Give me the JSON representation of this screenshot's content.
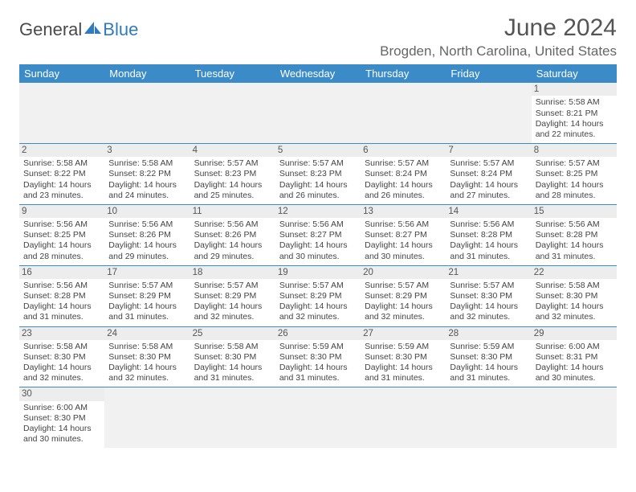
{
  "branding": {
    "logo_text_1": "General",
    "logo_text_2": "Blue"
  },
  "header": {
    "month_title": "June 2024",
    "location": "Brogden, North Carolina, United States"
  },
  "colors": {
    "header_bg": "#3b8bc9",
    "header_text": "#ffffff",
    "daynum_bg": "#ededed",
    "empty_bg": "#f1f1f1",
    "border": "#3b8bc9"
  },
  "weekdays": [
    "Sunday",
    "Monday",
    "Tuesday",
    "Wednesday",
    "Thursday",
    "Friday",
    "Saturday"
  ],
  "weeks": [
    [
      null,
      null,
      null,
      null,
      null,
      null,
      {
        "n": "1",
        "sr": "5:58 AM",
        "ss": "8:21 PM",
        "dl": "14 hours and 22 minutes."
      }
    ],
    [
      {
        "n": "2",
        "sr": "5:58 AM",
        "ss": "8:22 PM",
        "dl": "14 hours and 23 minutes."
      },
      {
        "n": "3",
        "sr": "5:58 AM",
        "ss": "8:22 PM",
        "dl": "14 hours and 24 minutes."
      },
      {
        "n": "4",
        "sr": "5:57 AM",
        "ss": "8:23 PM",
        "dl": "14 hours and 25 minutes."
      },
      {
        "n": "5",
        "sr": "5:57 AM",
        "ss": "8:23 PM",
        "dl": "14 hours and 26 minutes."
      },
      {
        "n": "6",
        "sr": "5:57 AM",
        "ss": "8:24 PM",
        "dl": "14 hours and 26 minutes."
      },
      {
        "n": "7",
        "sr": "5:57 AM",
        "ss": "8:24 PM",
        "dl": "14 hours and 27 minutes."
      },
      {
        "n": "8",
        "sr": "5:57 AM",
        "ss": "8:25 PM",
        "dl": "14 hours and 28 minutes."
      }
    ],
    [
      {
        "n": "9",
        "sr": "5:56 AM",
        "ss": "8:25 PM",
        "dl": "14 hours and 28 minutes."
      },
      {
        "n": "10",
        "sr": "5:56 AM",
        "ss": "8:26 PM",
        "dl": "14 hours and 29 minutes."
      },
      {
        "n": "11",
        "sr": "5:56 AM",
        "ss": "8:26 PM",
        "dl": "14 hours and 29 minutes."
      },
      {
        "n": "12",
        "sr": "5:56 AM",
        "ss": "8:27 PM",
        "dl": "14 hours and 30 minutes."
      },
      {
        "n": "13",
        "sr": "5:56 AM",
        "ss": "8:27 PM",
        "dl": "14 hours and 30 minutes."
      },
      {
        "n": "14",
        "sr": "5:56 AM",
        "ss": "8:28 PM",
        "dl": "14 hours and 31 minutes."
      },
      {
        "n": "15",
        "sr": "5:56 AM",
        "ss": "8:28 PM",
        "dl": "14 hours and 31 minutes."
      }
    ],
    [
      {
        "n": "16",
        "sr": "5:56 AM",
        "ss": "8:28 PM",
        "dl": "14 hours and 31 minutes."
      },
      {
        "n": "17",
        "sr": "5:57 AM",
        "ss": "8:29 PM",
        "dl": "14 hours and 31 minutes."
      },
      {
        "n": "18",
        "sr": "5:57 AM",
        "ss": "8:29 PM",
        "dl": "14 hours and 32 minutes."
      },
      {
        "n": "19",
        "sr": "5:57 AM",
        "ss": "8:29 PM",
        "dl": "14 hours and 32 minutes."
      },
      {
        "n": "20",
        "sr": "5:57 AM",
        "ss": "8:29 PM",
        "dl": "14 hours and 32 minutes."
      },
      {
        "n": "21",
        "sr": "5:57 AM",
        "ss": "8:30 PM",
        "dl": "14 hours and 32 minutes."
      },
      {
        "n": "22",
        "sr": "5:58 AM",
        "ss": "8:30 PM",
        "dl": "14 hours and 32 minutes."
      }
    ],
    [
      {
        "n": "23",
        "sr": "5:58 AM",
        "ss": "8:30 PM",
        "dl": "14 hours and 32 minutes."
      },
      {
        "n": "24",
        "sr": "5:58 AM",
        "ss": "8:30 PM",
        "dl": "14 hours and 32 minutes."
      },
      {
        "n": "25",
        "sr": "5:58 AM",
        "ss": "8:30 PM",
        "dl": "14 hours and 31 minutes."
      },
      {
        "n": "26",
        "sr": "5:59 AM",
        "ss": "8:30 PM",
        "dl": "14 hours and 31 minutes."
      },
      {
        "n": "27",
        "sr": "5:59 AM",
        "ss": "8:30 PM",
        "dl": "14 hours and 31 minutes."
      },
      {
        "n": "28",
        "sr": "5:59 AM",
        "ss": "8:30 PM",
        "dl": "14 hours and 31 minutes."
      },
      {
        "n": "29",
        "sr": "6:00 AM",
        "ss": "8:31 PM",
        "dl": "14 hours and 30 minutes."
      }
    ],
    [
      {
        "n": "30",
        "sr": "6:00 AM",
        "ss": "8:30 PM",
        "dl": "14 hours and 30 minutes."
      },
      null,
      null,
      null,
      null,
      null,
      null
    ]
  ],
  "labels": {
    "sunrise": "Sunrise: ",
    "sunset": "Sunset: ",
    "daylight": "Daylight: "
  }
}
